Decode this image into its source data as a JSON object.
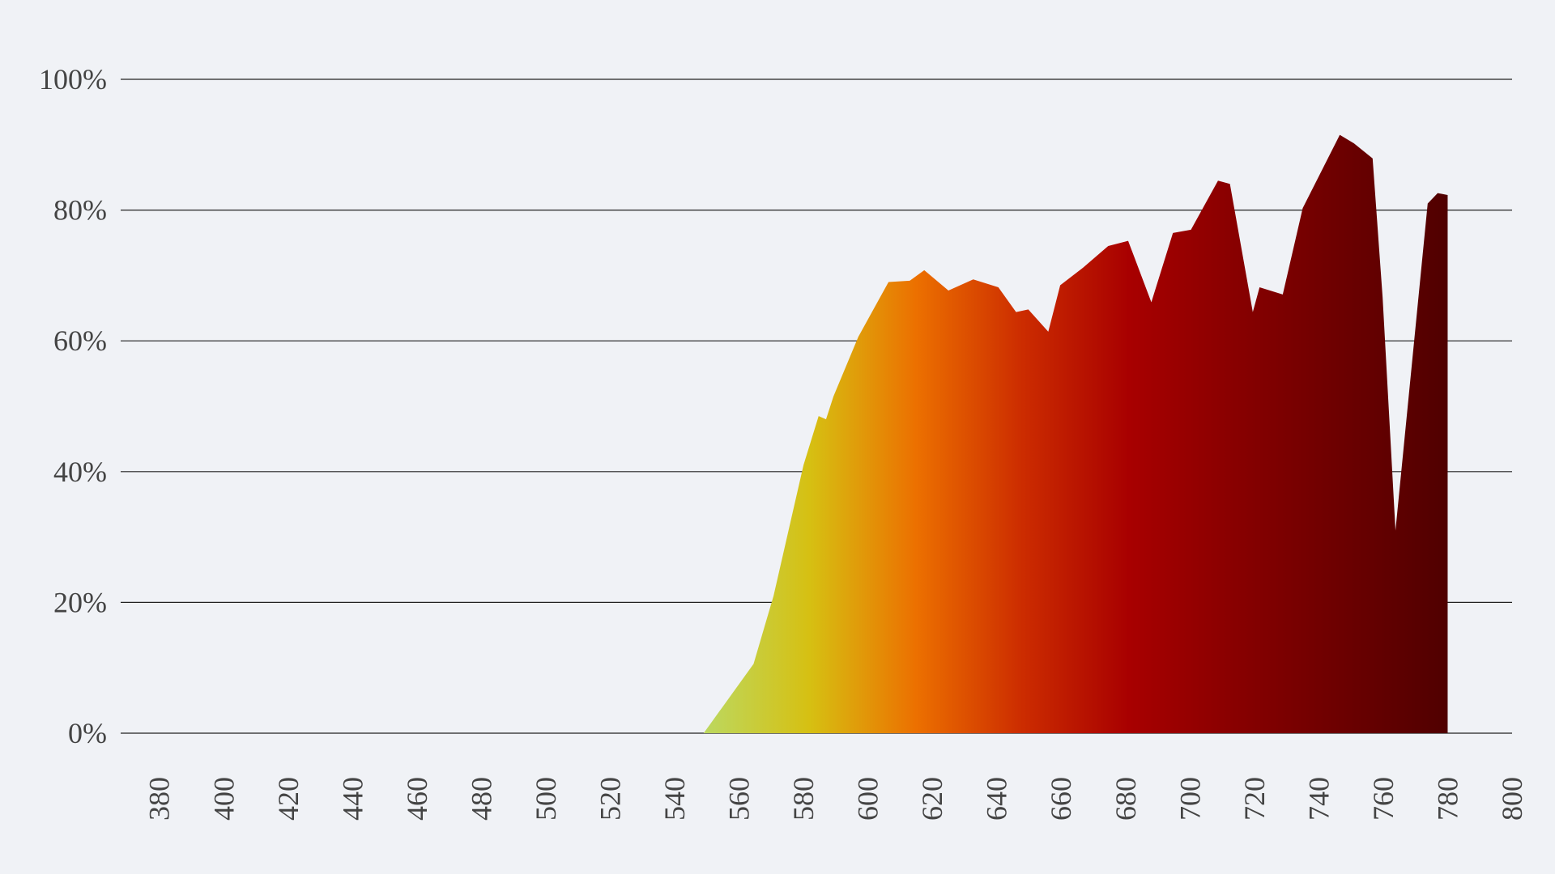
{
  "chart_data": {
    "type": "area",
    "x": [
      380,
      549,
      564.5,
      570.7,
      580,
      584.7,
      587,
      589.3,
      597,
      606.4,
      613,
      617.5,
      625,
      632.7,
      640.5,
      646,
      649.8,
      656,
      659.7,
      666.8,
      674.6,
      680.8,
      688,
      694.7,
      700.3,
      708.7,
      712.4,
      719.5,
      721.6,
      728.8,
      735,
      746.5,
      750.9,
      756.7,
      759.8,
      763.8,
      773.8,
      776.9,
      780
    ],
    "values": [
      0,
      0,
      10.6,
      21,
      41,
      48.5,
      48,
      51.5,
      60.6,
      69,
      69.2,
      70.8,
      67.7,
      69.4,
      68.2,
      64.4,
      64.8,
      61.4,
      68.5,
      71.2,
      74.5,
      75.3,
      65.9,
      76.5,
      77,
      84.5,
      84,
      64.4,
      68.2,
      67.1,
      80.3,
      91.5,
      90.2,
      87.9,
      66.7,
      31,
      81,
      82.6,
      82.3
    ],
    "gradient": [
      "#bcd860",
      "#d6c012",
      "#ec7000",
      "#cc2c00",
      "#a80000",
      "#880000",
      "#6c0000",
      "#500000"
    ],
    "xlim": [
      368,
      800
    ],
    "xticks": [
      380,
      400,
      420,
      440,
      460,
      480,
      500,
      520,
      540,
      560,
      580,
      600,
      620,
      640,
      660,
      680,
      700,
      720,
      740,
      760,
      780,
      800
    ],
    "ylim": [
      0,
      100
    ],
    "yticks": [
      {
        "value": 0,
        "label": "0%"
      },
      {
        "value": 20,
        "label": "20%"
      },
      {
        "value": 40,
        "label": "40%"
      },
      {
        "value": 60,
        "label": "60%"
      },
      {
        "value": 80,
        "label": "80%"
      },
      {
        "value": 100,
        "label": "100%"
      }
    ],
    "grid": true
  }
}
